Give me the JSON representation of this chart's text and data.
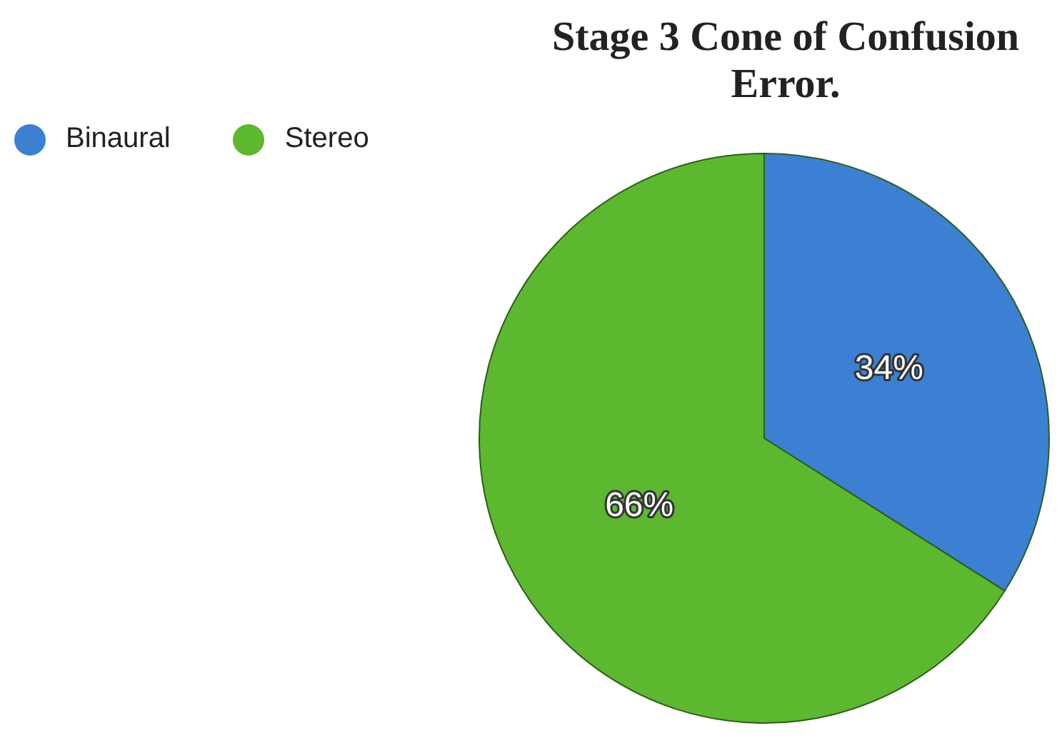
{
  "chart_data": {
    "type": "pie",
    "title": "Stage 3 Cone of Confusion Error.",
    "categories": [
      "Binaural",
      "Stereo"
    ],
    "values": [
      34,
      66
    ],
    "colors": [
      "#3b80d2",
      "#5cb82e"
    ],
    "value_labels": [
      "34%",
      "66%"
    ],
    "legend": "top left"
  }
}
